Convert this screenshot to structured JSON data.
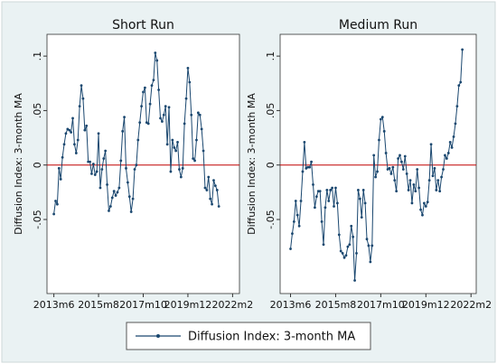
{
  "chart_data": [
    {
      "type": "line",
      "title": "Short Run",
      "ylabel": "Diffusion Index: 3-month MA",
      "x": [
        "2013m6",
        "2013m7",
        "2013m8",
        "2013m9",
        "2013m10",
        "2013m11",
        "2013m12",
        "2014m1",
        "2014m2",
        "2014m3",
        "2014m4",
        "2014m5",
        "2014m6",
        "2014m7",
        "2014m8",
        "2014m9",
        "2014m10",
        "2014m11",
        "2014m12",
        "2015m1",
        "2015m2",
        "2015m3",
        "2015m4",
        "2015m5",
        "2015m6",
        "2015m7",
        "2015m8",
        "2015m9",
        "2015m10",
        "2015m11",
        "2015m12",
        "2016m1",
        "2016m2",
        "2016m3",
        "2016m4",
        "2016m5",
        "2016m6",
        "2016m7",
        "2016m8",
        "2016m9",
        "2016m10",
        "2016m11",
        "2016m12",
        "2017m1",
        "2017m2",
        "2017m3",
        "2017m4",
        "2017m5",
        "2017m6",
        "2017m7",
        "2017m8",
        "2017m9",
        "2017m10",
        "2017m11",
        "2017m12",
        "2018m1",
        "2018m2",
        "2018m3",
        "2018m4",
        "2018m5",
        "2018m6",
        "2018m7",
        "2018m8",
        "2018m9",
        "2018m10",
        "2018m11",
        "2018m12",
        "2019m1",
        "2019m2",
        "2019m3",
        "2019m4",
        "2019m5",
        "2019m6",
        "2019m7",
        "2019m8",
        "2019m9",
        "2019m10",
        "2019m11",
        "2019m12",
        "2020m1",
        "2020m2",
        "2020m3",
        "2020m4",
        "2020m5",
        "2020m6",
        "2020m7",
        "2020m8",
        "2020m9",
        "2020m10",
        "2020m11",
        "2020m12",
        "2021m1",
        "2021m2",
        "2021m3",
        "2021m4",
        "2021m5",
        "2021m6"
      ],
      "series": [
        {
          "name": "Diffusion Index: 3-month MA",
          "color": "#1a476f",
          "values": [
            -0.045,
            -0.033,
            -0.036,
            -0.003,
            -0.013,
            0.007,
            0.019,
            0.029,
            0.033,
            0.032,
            0.03,
            0.043,
            0.019,
            0.011,
            0.023,
            0.054,
            0.073,
            0.061,
            0.032,
            0.036,
            0.003,
            0.003,
            -0.008,
            0.001,
            -0.009,
            -0.006,
            0.029,
            -0.021,
            -0.004,
            0.006,
            0.013,
            -0.018,
            -0.042,
            -0.038,
            -0.03,
            -0.024,
            -0.028,
            -0.025,
            -0.021,
            0.004,
            0.031,
            0.044,
            -0.003,
            -0.016,
            -0.029,
            -0.043,
            -0.031,
            -0.004,
            0,
            0.023,
            0.039,
            0.054,
            0.067,
            0.071,
            0.039,
            0.038,
            0.056,
            0.073,
            0.078,
            0.103,
            0.096,
            0.069,
            0.043,
            0.04,
            0.046,
            0.054,
            0.019,
            0.053,
            -0.006,
            0.023,
            0.016,
            0.013,
            0.021,
            -0.004,
            -0.011,
            -0.003,
            0.038,
            0.061,
            0.089,
            0.076,
            0.046,
            0.006,
            0.004,
            0.023,
            0.048,
            0.046,
            0.033,
            0.013,
            -0.021,
            -0.023,
            -0.011,
            -0.031,
            -0.036,
            -0.014,
            -0.019,
            -0.023,
            -0.038
          ]
        }
      ],
      "xlim": [
        "2013m2",
        "2022m6"
      ],
      "xticks": [
        "2013m6",
        "2015m8",
        "2017m10",
        "2019m12",
        "2022m2"
      ],
      "ylim": [
        -0.118,
        0.12
      ],
      "yticks": [
        {
          "value": -0.05,
          "label": "-.05"
        },
        {
          "value": 0,
          "label": "0"
        },
        {
          "value": 0.05,
          "label": ".05"
        },
        {
          "value": 0.1,
          "label": ".1"
        }
      ],
      "reference_line": {
        "value": 0,
        "color": "#c00000"
      }
    },
    {
      "type": "line",
      "title": "Medium Run",
      "ylabel": "Diffusion Index: 3-month MA",
      "x": [
        "2013m6",
        "2013m7",
        "2013m8",
        "2013m9",
        "2013m10",
        "2013m11",
        "2013m12",
        "2014m1",
        "2014m2",
        "2014m3",
        "2014m4",
        "2014m5",
        "2014m6",
        "2014m7",
        "2014m8",
        "2014m9",
        "2014m10",
        "2014m11",
        "2014m12",
        "2015m1",
        "2015m2",
        "2015m3",
        "2015m4",
        "2015m5",
        "2015m6",
        "2015m7",
        "2015m8",
        "2015m9",
        "2015m10",
        "2015m11",
        "2015m12",
        "2016m1",
        "2016m2",
        "2016m3",
        "2016m4",
        "2016m5",
        "2016m6",
        "2016m7",
        "2016m8",
        "2016m9",
        "2016m10",
        "2016m11",
        "2016m12",
        "2017m1",
        "2017m2",
        "2017m3",
        "2017m4",
        "2017m5",
        "2017m6",
        "2017m7",
        "2017m8",
        "2017m9",
        "2017m10",
        "2017m11",
        "2017m12",
        "2018m1",
        "2018m2",
        "2018m3",
        "2018m4",
        "2018m5",
        "2018m6",
        "2018m7",
        "2018m8",
        "2018m9",
        "2018m10",
        "2018m11",
        "2018m12",
        "2019m1",
        "2019m2",
        "2019m3",
        "2019m4",
        "2019m5",
        "2019m6",
        "2019m7",
        "2019m8",
        "2019m9",
        "2019m10",
        "2019m11",
        "2019m12",
        "2020m1",
        "2020m2",
        "2020m3",
        "2020m4",
        "2020m5",
        "2020m6",
        "2020m7",
        "2020m8",
        "2020m9",
        "2020m10",
        "2020m11",
        "2020m12",
        "2021m1",
        "2021m2",
        "2021m3",
        "2021m4",
        "2021m5",
        "2021m6",
        "2021m7",
        "2021m8",
        "2021m9"
      ],
      "series": [
        {
          "name": "Diffusion Index: 3-month MA",
          "color": "#1a476f",
          "values": [
            -0.077,
            -0.063,
            -0.052,
            -0.033,
            -0.046,
            -0.056,
            -0.033,
            -0.006,
            0.021,
            -0.003,
            -0.002,
            -0.002,
            0.003,
            -0.018,
            -0.039,
            -0.029,
            -0.024,
            -0.024,
            -0.052,
            -0.073,
            -0.039,
            -0.023,
            -0.033,
            -0.023,
            -0.021,
            -0.038,
            -0.021,
            -0.035,
            -0.064,
            -0.079,
            -0.081,
            -0.085,
            -0.083,
            -0.075,
            -0.073,
            -0.056,
            -0.066,
            -0.106,
            -0.081,
            -0.023,
            -0.031,
            -0.048,
            -0.023,
            -0.035,
            -0.068,
            -0.074,
            -0.089,
            -0.074,
            0.009,
            -0.011,
            -0.006,
            0.023,
            0.042,
            0.044,
            0.031,
            0.011,
            -0.004,
            -0.003,
            -0.008,
            -0.002,
            -0.014,
            -0.024,
            0.006,
            0.009,
            0.003,
            -0.004,
            0.008,
            -0.008,
            -0.023,
            -0.014,
            -0.035,
            -0.018,
            -0.024,
            -0.004,
            -0.021,
            -0.041,
            -0.046,
            -0.035,
            -0.038,
            -0.034,
            -0.014,
            0.019,
            -0.01,
            -0.003,
            -0.023,
            -0.014,
            -0.024,
            -0.011,
            -0.004,
            0.009,
            0.006,
            0.011,
            0.021,
            0.016,
            0.026,
            0.038,
            0.054,
            0.073,
            0.076,
            0.106
          ]
        }
      ],
      "xlim": [
        "2012m12",
        "2022m5"
      ],
      "xticks": [
        "2013m6",
        "2015m8",
        "2017m10",
        "2019m12",
        "2022m2"
      ],
      "ylim": [
        -0.118,
        0.12
      ],
      "yticks": [
        {
          "value": -0.05,
          "label": "-.05"
        },
        {
          "value": 0,
          "label": "0"
        },
        {
          "value": 0.05,
          "label": ".05"
        },
        {
          "value": 0.1,
          "label": ".1"
        }
      ],
      "reference_line": {
        "value": 0,
        "color": "#c00000"
      }
    }
  ]
}
